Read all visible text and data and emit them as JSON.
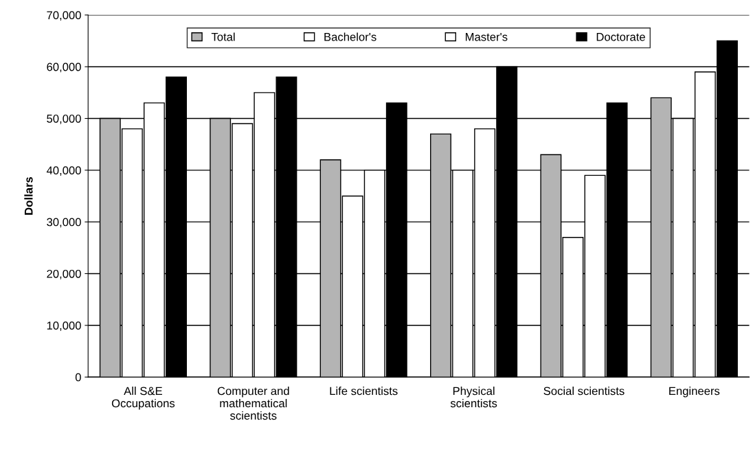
{
  "chart_data": {
    "type": "bar",
    "ylabel": "Dollars",
    "categories": [
      "All S&E\nOccupations",
      "Computer and\nmathematical\nscientists",
      "Life scientists",
      "Physical\nscientists",
      "Social scientists",
      "Engineers"
    ],
    "series": [
      {
        "name": "Total",
        "color": "#b4b4b4",
        "values": [
          50000,
          50000,
          42000,
          47000,
          43000,
          54000
        ]
      },
      {
        "name": "Bachelor's",
        "color": "#ffffff",
        "values": [
          48000,
          49000,
          35000,
          40000,
          27000,
          50000
        ]
      },
      {
        "name": "Master's",
        "color": "#ffffff",
        "values": [
          53000,
          55000,
          40000,
          48000,
          39000,
          59000
        ]
      },
      {
        "name": "Doctorate",
        "color": "#000000",
        "values": [
          58000,
          58000,
          53000,
          60000,
          53000,
          65000
        ]
      }
    ],
    "ylim": [
      0,
      70000
    ],
    "yticks": [
      {
        "value": 0,
        "label": "0"
      },
      {
        "value": 10000,
        "label": "10,000"
      },
      {
        "value": 20000,
        "label": "20,000"
      },
      {
        "value": 30000,
        "label": "30,000"
      },
      {
        "value": 40000,
        "label": "40,000"
      },
      {
        "value": 50000,
        "label": "50,000"
      },
      {
        "value": 60000,
        "label": "60,000"
      },
      {
        "value": 70000,
        "label": "70,000"
      }
    ],
    "grid": "y",
    "legend": "top"
  }
}
